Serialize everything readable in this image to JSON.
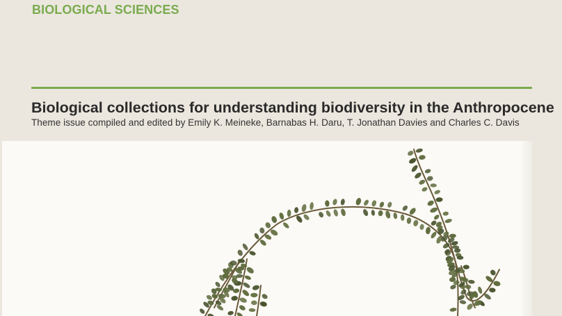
{
  "header": {
    "section": "BIOLOGICAL SCIENCES"
  },
  "article": {
    "title": "Biological collections for understanding biodiversity in the Anthropocene",
    "subtitle": "Theme issue compiled and edited by Emily K. Meineke, Barnabas H. Daru, T. Jonathan Davies and Charles C. Davis"
  },
  "colors": {
    "background": "#ebe7de",
    "accent_green": "#7aab4f",
    "title_text": "#2a2a2a",
    "image_background": "#fbfaf6",
    "plant_leaf": "#5f6b3d",
    "plant_stem": "#6b5a3a"
  },
  "cover_image": {
    "subject": "pressed-herbarium-plant-specimen"
  }
}
